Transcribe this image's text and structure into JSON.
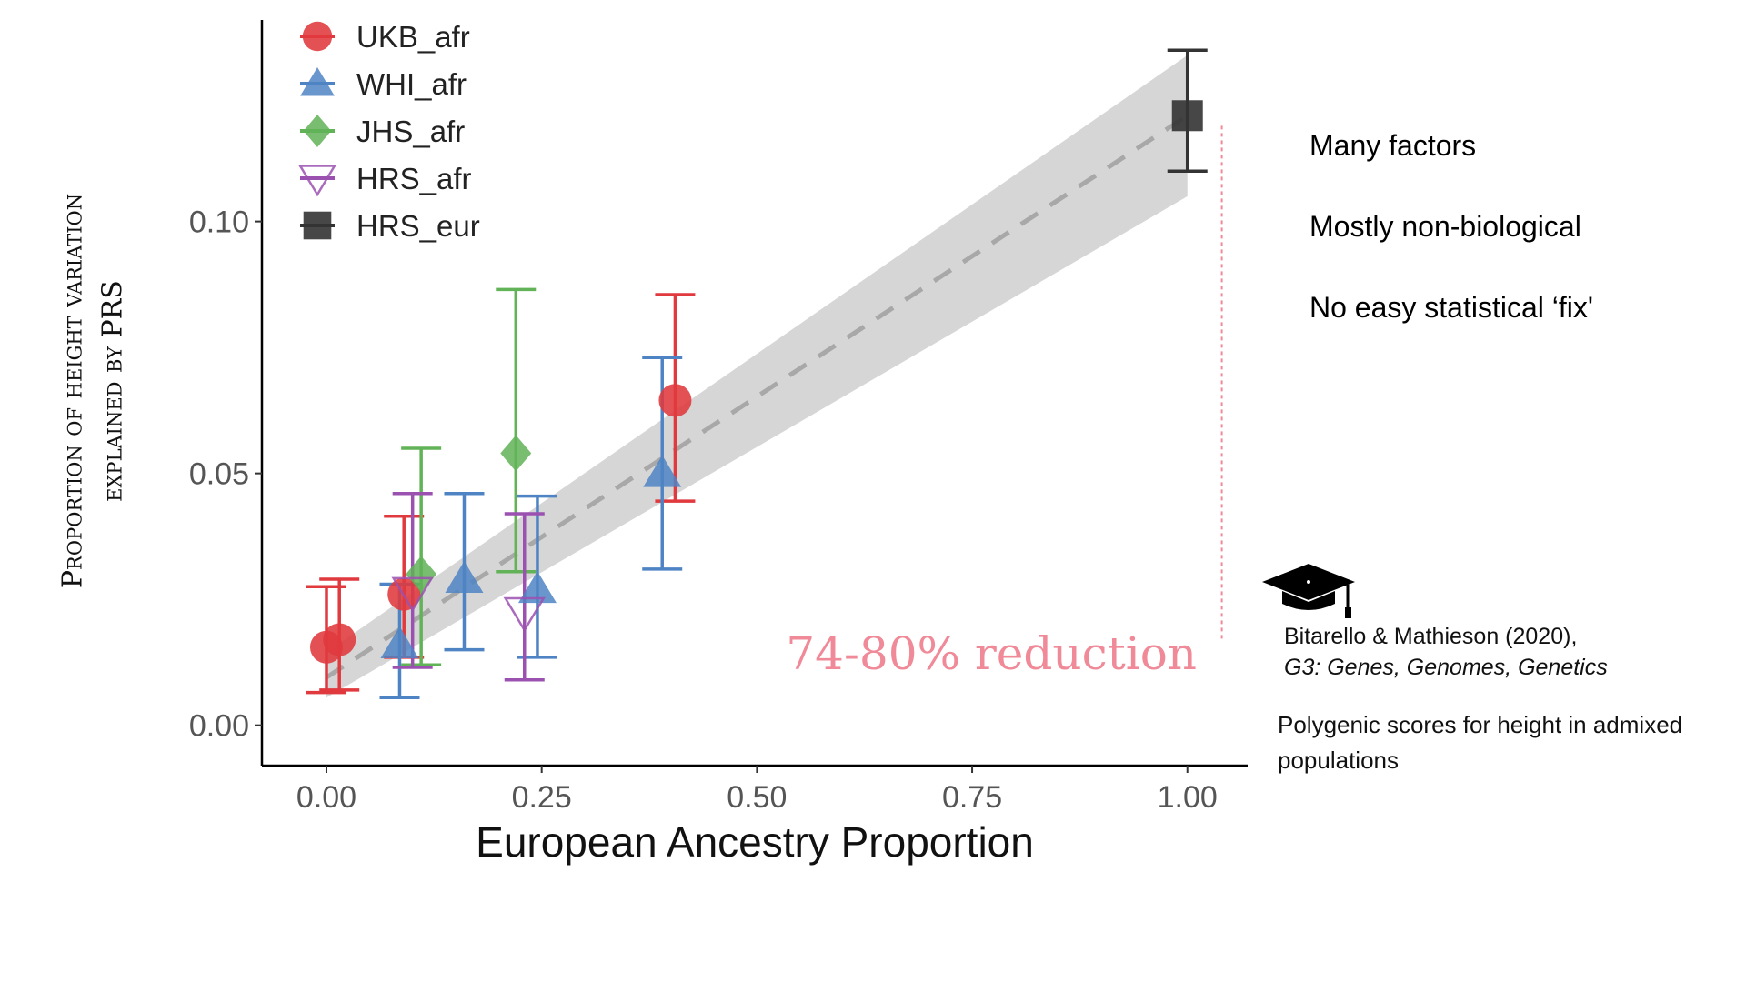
{
  "chart_data": {
    "type": "scatter",
    "xlabel": "European Ancestry Proportion",
    "ylabel_line1": "Proportion of height variation",
    "ylabel_line2": "explained by PRS",
    "xlim": [
      -0.075,
      1.07
    ],
    "ylim": [
      -0.008,
      0.14
    ],
    "x_ticks": [
      0.0,
      0.25,
      0.5,
      0.75,
      1.0
    ],
    "x_tick_labels": [
      "0.00",
      "0.25",
      "0.50",
      "0.75",
      "1.00"
    ],
    "y_ticks": [
      0.0,
      0.05,
      0.1
    ],
    "y_tick_labels": [
      "0.00",
      "0.05",
      "0.10"
    ],
    "legend_position": "top-left",
    "regression": {
      "intercept": 0.0095,
      "slope": 0.1115,
      "band_low_at_0": 0.0055,
      "band_high_at_0": 0.0145,
      "band_low_at_1": 0.105,
      "band_high_at_1": 0.133
    },
    "annotation": "74-80% reduction",
    "annotation_color": "#f08a98",
    "series": [
      {
        "name": "UKB_afr",
        "marker": "circle",
        "color": "#e0393e",
        "points": [
          {
            "x": 0.0,
            "y": 0.0155,
            "lo": 0.0065,
            "hi": 0.0275
          },
          {
            "x": 0.015,
            "y": 0.017,
            "lo": 0.007,
            "hi": 0.029
          },
          {
            "x": 0.09,
            "y": 0.026,
            "lo": 0.0135,
            "hi": 0.0415
          },
          {
            "x": 0.405,
            "y": 0.0645,
            "lo": 0.0445,
            "hi": 0.0855
          }
        ]
      },
      {
        "name": "WHI_afr",
        "marker": "triangle",
        "color": "#4f84c4",
        "points": [
          {
            "x": 0.085,
            "y": 0.016,
            "lo": 0.0055,
            "hi": 0.028
          },
          {
            "x": 0.16,
            "y": 0.029,
            "lo": 0.015,
            "hi": 0.046
          },
          {
            "x": 0.245,
            "y": 0.027,
            "lo": 0.0135,
            "hi": 0.0455
          },
          {
            "x": 0.39,
            "y": 0.05,
            "lo": 0.031,
            "hi": 0.073
          }
        ]
      },
      {
        "name": "JHS_afr",
        "marker": "diamond",
        "color": "#62b357",
        "points": [
          {
            "x": 0.11,
            "y": 0.03,
            "lo": 0.012,
            "hi": 0.055
          },
          {
            "x": 0.22,
            "y": 0.054,
            "lo": 0.0305,
            "hi": 0.0865
          }
        ]
      },
      {
        "name": "HRS_afr",
        "marker": "triangle-open",
        "color": "#9b51b0",
        "points": [
          {
            "x": 0.1,
            "y": 0.0265,
            "lo": 0.0115,
            "hi": 0.046
          },
          {
            "x": 0.23,
            "y": 0.0225,
            "lo": 0.009,
            "hi": 0.042
          }
        ]
      },
      {
        "name": "HRS_eur",
        "marker": "square",
        "color": "#333333",
        "points": [
          {
            "x": 1.0,
            "y": 0.121,
            "lo": 0.11,
            "hi": 0.134
          }
        ]
      }
    ]
  },
  "sidebar": {
    "points": [
      "Many factors",
      "Mostly non-biological",
      "No easy statistical ‘fix'"
    ]
  },
  "reference": {
    "authors": "Bitarello & Mathieson (2020),",
    "journal": "G3: Genes, Genomes, Genetics",
    "description": "Polygenic scores for height in admixed populations"
  }
}
